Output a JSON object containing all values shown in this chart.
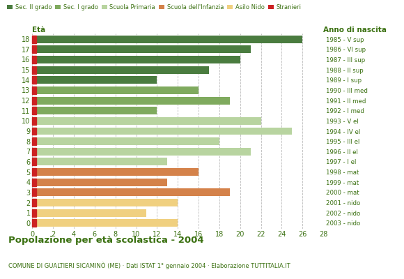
{
  "ages": [
    18,
    17,
    16,
    15,
    14,
    13,
    12,
    11,
    10,
    9,
    8,
    7,
    6,
    5,
    4,
    3,
    2,
    1,
    0
  ],
  "values": [
    26,
    21,
    20,
    17,
    12,
    16,
    19,
    12,
    22,
    25,
    18,
    21,
    13,
    16,
    13,
    19,
    14,
    11,
    14
  ],
  "colors": [
    "#4a7c3f",
    "#4a7c3f",
    "#4a7c3f",
    "#4a7c3f",
    "#4a7c3f",
    "#7faa5e",
    "#7faa5e",
    "#7faa5e",
    "#b8d4a0",
    "#b8d4a0",
    "#b8d4a0",
    "#b8d4a0",
    "#b8d4a0",
    "#d4824a",
    "#d4824a",
    "#d4824a",
    "#f0d080",
    "#f0d080",
    "#f0d080"
  ],
  "right_labels": [
    "1985 - V sup",
    "1986 - VI sup",
    "1987 - III sup",
    "1988 - II sup",
    "1989 - I sup",
    "1990 - III med",
    "1991 - II med",
    "1992 - I med",
    "1993 - V el",
    "1994 - IV el",
    "1995 - III el",
    "1996 - II el",
    "1997 - I el",
    "1998 - mat",
    "1999 - mat",
    "2000 - mat",
    "2001 - nido",
    "2002 - nido",
    "2003 - nido"
  ],
  "legend_labels": [
    "Sec. II grado",
    "Sec. I grado",
    "Scuola Primaria",
    "Scuola dell'Infanzia",
    "Asilo Nido",
    "Stranieri"
  ],
  "legend_colors": [
    "#4a7c3f",
    "#7faa5e",
    "#b8d4a0",
    "#d4824a",
    "#f0d080",
    "#cc2222"
  ],
  "title": "Popolazione per età scolastica - 2004",
  "subtitle": "COMUNE DI GUALTIERI SICAMINÒ (ME) · Dati ISTAT 1° gennaio 2004 · Elaborazione TUTTITALIA.IT",
  "xlabel_eta": "Età",
  "xlabel_anno": "Anno di nascita",
  "xlim": [
    0,
    28
  ],
  "xticks": [
    0,
    2,
    4,
    6,
    8,
    10,
    12,
    14,
    16,
    18,
    20,
    22,
    24,
    26,
    28
  ],
  "bg_color": "#ffffff",
  "bar_height": 0.75,
  "grid_color": "#bbbbbb",
  "text_color": "#3a7010",
  "stranieri_color": "#cc2222"
}
